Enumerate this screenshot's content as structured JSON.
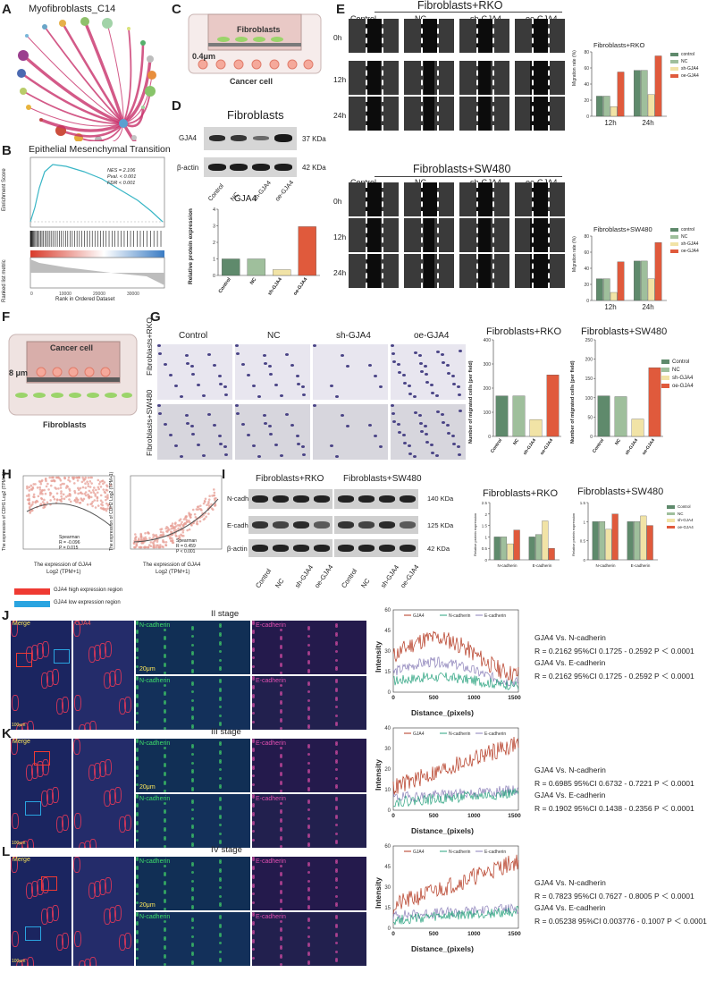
{
  "panels": {
    "A": "A",
    "B": "B",
    "C": "C",
    "D": "D",
    "E": "E",
    "F": "F",
    "G": "G",
    "H": "H",
    "I": "I",
    "J": "J",
    "K": "K",
    "L": "L"
  },
  "A": {
    "title": "Myofibroblasts_C14"
  },
  "B": {
    "title": "Epithelial Mesenchymal Transition",
    "ylabel_top": "Enrichment Score",
    "ylabel_bottom": "Ranked list metric",
    "xlabel": "Rank in Ordered Dataset",
    "nes": "NES = 2.106",
    "pval": "Pval. < 0.001",
    "fdr": "FDR < 0.001"
  },
  "C": {
    "top": "Fibroblasts",
    "pore": "0.4μm",
    "bottom": "Cancer cell"
  },
  "D": {
    "title": "Fibroblasts",
    "band1": "GJA4",
    "band2": "β-actin",
    "kda1": "37 KDa",
    "kda2": "42 KDa",
    "groups": [
      "Control",
      "NC",
      "sh-GJA4",
      "oe-GJA4"
    ],
    "bar_title": "GJA4",
    "ylabel": "Relative protein expression",
    "stars": "****"
  },
  "E": {
    "title_rko": "Fibroblasts+RKO",
    "title_sw": "Fibroblasts+SW480",
    "groups": [
      "Control",
      "NC",
      "sh-GJA4",
      "oe-GJA4"
    ],
    "rows": [
      "0h",
      "12h",
      "24h"
    ],
    "chart_rko_title": "Fibroblasts+RKO",
    "chart_sw_title": "Fibroblasts+SW480",
    "ylabel": "Migration rate (%)",
    "legend": [
      "control",
      "NC",
      "sh-GJA4",
      "oe-GJA4"
    ]
  },
  "F": {
    "top": "Cancer cell",
    "pore": "8 μm",
    "bottom": "Fibroblasts"
  },
  "G": {
    "groups": [
      "Control",
      "NC",
      "sh-GJA4",
      "oe-GJA4"
    ],
    "row1": "Fibroblasts+RKO",
    "row2": "Fibroblasts+SW480",
    "chart_rko_title": "Fibroblasts+RKO",
    "chart_sw_title": "Fibroblasts+SW480",
    "ylabel": "Number of migrated cells (per field)",
    "legend": [
      "Control",
      "NC",
      "sh-GJA4",
      "oe-GJA4"
    ]
  },
  "H": {
    "y1": "The expression of CDH1 Log2 (TPM+1)",
    "y2": "The expression of CDH2 Log2 (TPM+1)",
    "x": "The expression of GJA4",
    "x2": "Log2 (TPM+1)",
    "s1a": "Spearman",
    "s1b": "R = -0.096",
    "s1c": "P = 0.015",
    "s2a": "Spearman",
    "s2b": "R = 0.459",
    "s2c": "P < 0.001"
  },
  "I": {
    "blot_rko": "Fibroblasts+RKO",
    "blot_sw": "Fibroblasts+SW480",
    "bands": [
      "N-cadherin",
      "E-cadherin",
      "β-actin"
    ],
    "kda": [
      "140 KDa",
      "125 KDa",
      "42 KDa"
    ],
    "groups": [
      "Control",
      "NC",
      "sh-GJA4",
      "oe-GJA4"
    ],
    "chart_rko_title": "Fibroblasts+RKO",
    "chart_sw_title": "Fibroblasts+SW480",
    "ylabel": "Relative protein expression",
    "cats": [
      "N-cadherin",
      "E-cadherin"
    ],
    "legend": [
      "Control",
      "NC",
      "sh-GJA4",
      "oe-GJA4"
    ]
  },
  "legend_regions": {
    "high": "GJA4 high expression region",
    "low": "GJA4 low expression region"
  },
  "JKL": {
    "stages": [
      "II stage",
      "III stage",
      "IV stage"
    ],
    "merge": "Merge",
    "gja4": "GJA4",
    "ncad": "N-cadherin",
    "ecad": "E-cadherin",
    "scale20": "20μm",
    "scale100": "100μm",
    "xlabel": "Distance_(pixels)",
    "ylabel": "Intensity",
    "plot_legend": [
      "GJA4",
      "N-cadherin",
      "E-cadherin"
    ],
    "stats": [
      [
        "GJA4 Vs. N-cadherin",
        "R = 0.2162  95%CI 0.1725 - 0.2592  P ＜ 0.0001",
        "GJA4 Vs. E-cadherin",
        "R = 0.2162  95%CI 0.1725 - 0.2592  P ＜ 0.0001"
      ],
      [
        "GJA4 Vs. N-cadherin",
        "R = 0.6985  95%CI 0.6732 - 0.7221  P ＜ 0.0001",
        "GJA4 Vs. E-cadherin",
        "R = 0.1902  95%CI 0.1438 - 0.2356  P ＜ 0.0001"
      ],
      [
        "GJA4 Vs. N-cadherin",
        "R = 0.7823  95%CI 0.7627 - 0.8005  P ＜ 0.0001",
        "GJA4 Vs. E-cadherin",
        "R = 0.05238  95%CI 0.003776 - 0.1007  P ＜ 0.0001"
      ]
    ]
  },
  "colors": {
    "control": "#5f8a6c",
    "nc": "#9fbf9c",
    "sh": "#f1e3a6",
    "oe": "#e05a3c",
    "gja4_line": "#b3361e",
    "ncad_line": "#2aa37f",
    "ecad_line": "#8a7fb8"
  },
  "chart_data": [
    {
      "type": "bar",
      "id": "D",
      "categories": [
        "Control",
        "NC",
        "sh-GJA4",
        "oe-GJA4"
      ],
      "values": [
        1.0,
        1.0,
        0.35,
        2.95
      ],
      "ylim": [
        0,
        4
      ],
      "yticks": [
        0,
        1,
        2,
        3,
        4
      ]
    },
    {
      "type": "bar",
      "id": "E-RKO",
      "categories": [
        "12h",
        "24h"
      ],
      "series": [
        {
          "name": "control",
          "values": [
            25,
            57
          ]
        },
        {
          "name": "NC",
          "values": [
            25,
            57
          ]
        },
        {
          "name": "sh-GJA4",
          "values": [
            12,
            27
          ]
        },
        {
          "name": "oe-GJA4",
          "values": [
            55,
            75
          ]
        }
      ],
      "ylim": [
        0,
        80
      ],
      "yticks": [
        0,
        20,
        40,
        60,
        80
      ]
    },
    {
      "type": "bar",
      "id": "E-SW480",
      "categories": [
        "12h",
        "24h"
      ],
      "series": [
        {
          "name": "control",
          "values": [
            27,
            49
          ]
        },
        {
          "name": "NC",
          "values": [
            27,
            49
          ]
        },
        {
          "name": "sh-GJA4",
          "values": [
            10,
            27
          ]
        },
        {
          "name": "oe-GJA4",
          "values": [
            48,
            72
          ]
        }
      ],
      "ylim": [
        0,
        80
      ],
      "yticks": [
        0,
        20,
        40,
        60,
        80
      ]
    },
    {
      "type": "bar",
      "id": "G-RKO",
      "categories": [
        "Control",
        "NC",
        "sh-GJA4",
        "oe-GJA4"
      ],
      "values": [
        168,
        168,
        70,
        255
      ],
      "ylim": [
        0,
        400
      ],
      "yticks": [
        0,
        100,
        200,
        300,
        400
      ]
    },
    {
      "type": "bar",
      "id": "G-SW480",
      "categories": [
        "Control",
        "NC",
        "sh-GJA4",
        "oe-GJA4"
      ],
      "values": [
        105,
        103,
        45,
        178
      ],
      "ylim": [
        0,
        250
      ],
      "yticks": [
        0,
        50,
        100,
        150,
        200,
        250
      ]
    },
    {
      "type": "bar",
      "id": "I-RKO",
      "categories": [
        "N-cadherin",
        "E-cadherin"
      ],
      "series": [
        {
          "name": "Control",
          "values": [
            1.0,
            1.0
          ]
        },
        {
          "name": "NC",
          "values": [
            1.0,
            1.1
          ]
        },
        {
          "name": "sh-GJA4",
          "values": [
            0.7,
            1.7
          ]
        },
        {
          "name": "oe-GJA4",
          "values": [
            1.3,
            0.5
          ]
        }
      ],
      "ylim": [
        0,
        2.5
      ],
      "yticks": [
        0,
        0.5,
        1.0,
        1.5,
        2.0,
        2.5
      ]
    },
    {
      "type": "bar",
      "id": "I-SW480",
      "categories": [
        "N-cadherin",
        "E-cadherin"
      ],
      "series": [
        {
          "name": "Control",
          "values": [
            1.0,
            1.0
          ]
        },
        {
          "name": "NC",
          "values": [
            1.0,
            1.0
          ]
        },
        {
          "name": "sh-GJA4",
          "values": [
            0.8,
            1.15
          ]
        },
        {
          "name": "oe-GJA4",
          "values": [
            1.2,
            0.9
          ]
        }
      ],
      "ylim": [
        0,
        1.5
      ],
      "yticks": [
        0,
        0.5,
        1.0,
        1.5
      ]
    }
  ]
}
